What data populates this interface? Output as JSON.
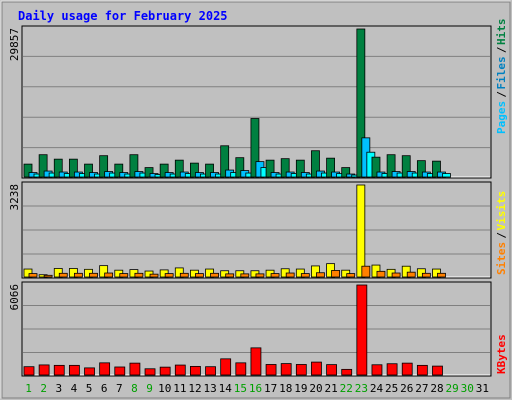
{
  "chart_data": [
    {
      "type": "bar",
      "title": "Daily usage for February 2025",
      "panel": "hits-files-pages",
      "ymax_label": "29857",
      "legend": [
        "Pages",
        "Files",
        "Hits"
      ],
      "legend_colors": [
        "#00c0ff",
        "#0080c0",
        "#008040"
      ],
      "x_labels": [
        "1",
        "2",
        "3",
        "4",
        "5",
        "6",
        "7",
        "8",
        "9",
        "10",
        "11",
        "12",
        "13",
        "14",
        "15",
        "16",
        "17",
        "18",
        "19",
        "20",
        "21",
        "22",
        "23",
        "24",
        "25",
        "26",
        "27",
        "28",
        "29",
        "30",
        "31"
      ],
      "series": [
        {
          "name": "Hits",
          "color": "#008040",
          "values": [
            2600,
            4500,
            3600,
            3600,
            2600,
            4300,
            2600,
            4500,
            1900,
            2600,
            3400,
            2800,
            2600,
            6300,
            3900,
            11800,
            3400,
            3700,
            3400,
            5300,
            3800,
            1900,
            29857,
            4000,
            4500,
            4300,
            3300,
            3200,
            0,
            0,
            0
          ]
        },
        {
          "name": "Files",
          "color": "#00c0ff",
          "values": [
            900,
            1200,
            1000,
            1000,
            900,
            1100,
            900,
            1100,
            700,
            900,
            1000,
            900,
            900,
            1400,
            1300,
            3100,
            900,
            1000,
            900,
            1200,
            1000,
            600,
            7900,
            1000,
            1100,
            1100,
            1000,
            1000,
            0,
            0,
            0
          ]
        },
        {
          "name": "Pages",
          "color": "#00ffff",
          "values": [
            600,
            800,
            700,
            700,
            600,
            800,
            600,
            800,
            500,
            600,
            700,
            600,
            600,
            900,
            800,
            1900,
            600,
            700,
            600,
            800,
            700,
            400,
            5000,
            700,
            800,
            800,
            700,
            700,
            0,
            0,
            0
          ]
        }
      ]
    },
    {
      "type": "bar",
      "panel": "visits-sites",
      "ymax_label": "3238",
      "legend": [
        "Sites",
        "Visits"
      ],
      "series": [
        {
          "name": "Visits",
          "color": "#ffff00",
          "values": [
            280,
            80,
            300,
            300,
            270,
            400,
            240,
            260,
            210,
            250,
            320,
            240,
            280,
            220,
            220,
            220,
            240,
            290,
            280,
            390,
            470,
            240,
            3238,
            420,
            270,
            380,
            290,
            280,
            0,
            0,
            0
          ]
        },
        {
          "name": "Sites",
          "color": "#ff8000",
          "values": [
            120,
            60,
            130,
            130,
            130,
            140,
            120,
            130,
            100,
            120,
            130,
            120,
            130,
            110,
            110,
            110,
            120,
            140,
            120,
            150,
            230,
            120,
            380,
            200,
            140,
            170,
            130,
            130,
            0,
            0,
            0
          ]
        }
      ]
    },
    {
      "type": "bar",
      "panel": "kbytes",
      "ymax_label": "6066",
      "legend": [
        "KBytes"
      ],
      "series": [
        {
          "name": "KBytes",
          "color": "#ff0000",
          "values": [
            560,
            680,
            650,
            650,
            480,
            820,
            540,
            800,
            420,
            530,
            670,
            580,
            560,
            1090,
            820,
            1830,
            710,
            770,
            710,
            870,
            700,
            380,
            6066,
            690,
            760,
            800,
            650,
            600,
            0,
            0,
            0
          ]
        }
      ]
    }
  ],
  "colors": {
    "background": "#c0c0c0",
    "plot_background": "#c0c0c0",
    "title_color": "#0000ff",
    "weekday_label_color": "#000000",
    "weekend_label_color": "#00a000",
    "gridline_color": "#808080"
  },
  "weekend_days": [
    "1",
    "2",
    "8",
    "9",
    "15",
    "16",
    "22",
    "23",
    "29",
    "30"
  ]
}
